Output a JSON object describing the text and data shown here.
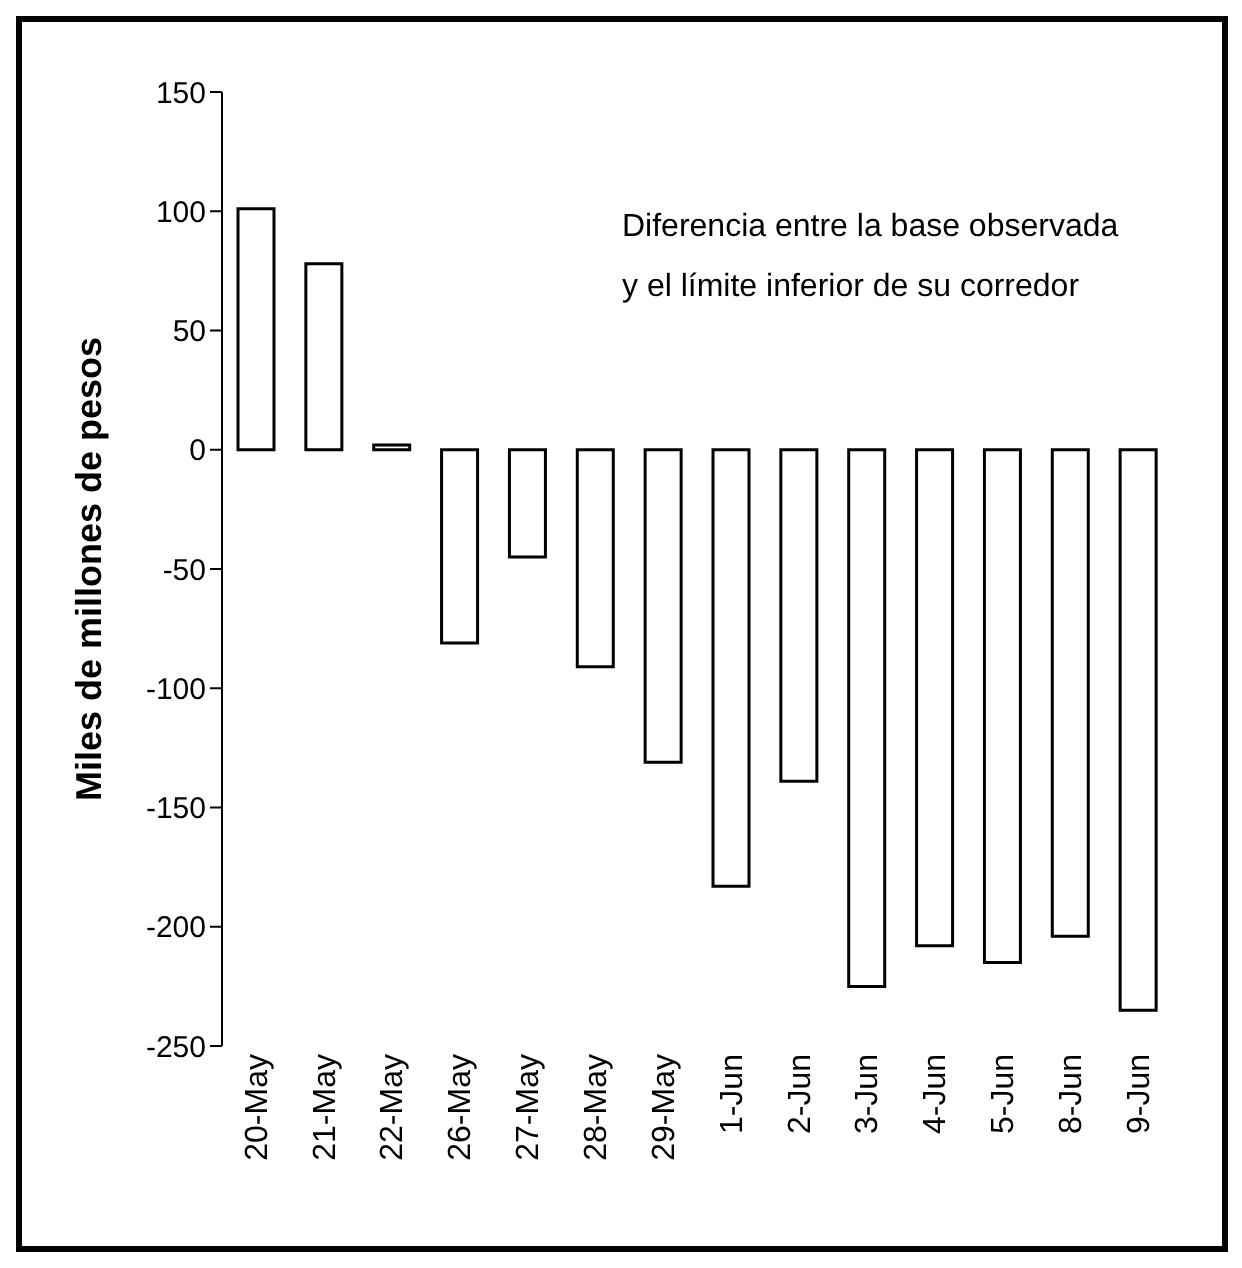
{
  "chart_data": {
    "type": "bar",
    "ylabel": "Miles de millones de pesos",
    "annotations": [
      "Diferencia entre la base observada y el límite inferior de su corredor"
    ],
    "categories": [
      "20-May",
      "21-May",
      "22-May",
      "26-May",
      "27-May",
      "28-May",
      "29-May",
      "1-Jun",
      "2-Jun",
      "3-Jun",
      "4-Jun",
      "5-Jun",
      "8-Jun",
      "9-Jun"
    ],
    "values": [
      101,
      78,
      2,
      -81,
      -45,
      -91,
      -131,
      -183,
      -139,
      -225,
      -208,
      -215,
      -204,
      -235
    ],
    "color": "#ffffff",
    "ylim": [
      -250,
      150
    ],
    "yticks": [
      -250,
      -200,
      -150,
      -100,
      -50,
      0,
      50,
      100,
      150
    ],
    "grid": false,
    "legend": false
  }
}
